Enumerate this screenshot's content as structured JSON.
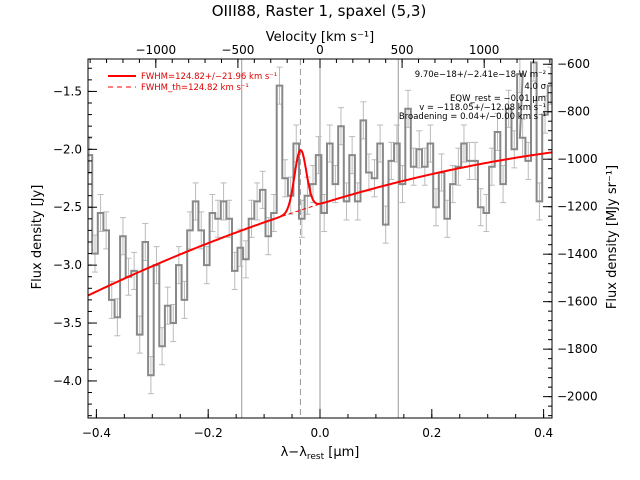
{
  "chart_data": {
    "type": "line",
    "title": "OIII88, Raster 1, spaxel (5,3)",
    "xlabel": "λ−λ_rest [μm]",
    "xlabel_main": "λ−λ",
    "xlabel_sub": "rest",
    "xlabel_unit": " [μm]",
    "ylabel": "Flux density [Jy]",
    "ylabel_right": "Flux density [MJy sr⁻¹]",
    "xlabel_top": "Velocity [km s⁻¹]",
    "xlim": [
      -0.415,
      0.415
    ],
    "ylim": [
      -4.32,
      -1.22
    ],
    "xticks": [
      -0.4,
      -0.2,
      0.0,
      0.2,
      0.4
    ],
    "xtick_labels": [
      "−0.4",
      "−0.2",
      "0.0",
      "0.2",
      "0.4"
    ],
    "yticks": [
      -4.0,
      -3.5,
      -3.0,
      -2.5,
      -2.0,
      -1.5
    ],
    "ytick_labels": [
      "−4.0",
      "−3.5",
      "−3.0",
      "−2.5",
      "−2.0",
      "−1.5"
    ],
    "right_ticks": [
      -2000,
      -1800,
      -1600,
      -1400,
      -1200,
      -1000,
      -800,
      -600
    ],
    "right_tick_labels": [
      "−2000",
      "−1800",
      "−1600",
      "−1400",
      "−1200",
      "−1000",
      "−800",
      "−600"
    ],
    "right_ylim": [
      -2090,
      -578
    ],
    "top_ticks": [
      -1000,
      -500,
      0,
      500,
      1000
    ],
    "top_tick_labels": [
      "−1000",
      "−500",
      "0",
      "500",
      "1000"
    ],
    "top_xlim": [
      -1413,
      1413
    ],
    "vlines_solid": [
      -0.14,
      0.0,
      0.14
    ],
    "vline_dashed": -0.035,
    "grid": false,
    "legend_position": "top-left",
    "legend": [
      {
        "label": "FWHM=124.82+/−21.96 km s⁻¹",
        "style": "solid"
      },
      {
        "label": "FWHM_th=124.82 km s⁻¹",
        "style": "dashed"
      }
    ],
    "annotations": [
      "9.70e−18+/−2.41e−18 W m⁻²",
      "4.0 σ",
      "EQW_rest = −0.01 μm",
      "v = −118.05+/−12.08 km s⁻¹",
      "Broadening = 0.04+/−0.00 km s⁻¹"
    ],
    "series": [
      {
        "name": "data",
        "color": "#888888",
        "x": [
          -0.4125,
          -0.4025,
          -0.3925,
          -0.3825,
          -0.3725,
          -0.3625,
          -0.3525,
          -0.3425,
          -0.3325,
          -0.3225,
          -0.3125,
          -0.3025,
          -0.2925,
          -0.2825,
          -0.2725,
          -0.2625,
          -0.2525,
          -0.2425,
          -0.2325,
          -0.2225,
          -0.2125,
          -0.2025,
          -0.1925,
          -0.1825,
          -0.1725,
          -0.1625,
          -0.1525,
          -0.1425,
          -0.1325,
          -0.1225,
          -0.1125,
          -0.1025,
          -0.0925,
          -0.0825,
          -0.0725,
          -0.0625,
          -0.0525,
          -0.0425,
          -0.0325,
          -0.0225,
          -0.0125,
          -0.0025,
          0.0075,
          0.0175,
          0.0275,
          0.0375,
          0.0475,
          0.0575,
          0.0675,
          0.0775,
          0.0875,
          0.0975,
          0.1075,
          0.1175,
          0.1275,
          0.1375,
          0.1475,
          0.1575,
          0.1675,
          0.1775,
          0.1875,
          0.1975,
          0.2075,
          0.2175,
          0.2275,
          0.2375,
          0.2475,
          0.2575,
          0.2675,
          0.2775,
          0.2875,
          0.2975,
          0.3075,
          0.3175,
          0.3275,
          0.3375,
          0.3475,
          0.3575,
          0.3625,
          0.3725,
          0.3825,
          0.3925,
          0.4025,
          0.4125
        ],
        "y": [
          -2.05,
          -2.9,
          -2.55,
          -2.7,
          -3.3,
          -3.45,
          -2.75,
          -3.1,
          -3.05,
          -3.6,
          -2.8,
          -3.95,
          -3.0,
          -3.7,
          -3.35,
          -3.5,
          -3.0,
          -3.3,
          -2.7,
          -2.45,
          -2.7,
          -3.0,
          -2.55,
          -2.6,
          -2.45,
          -2.6,
          -3.05,
          -2.85,
          -2.95,
          -2.6,
          -2.45,
          -2.35,
          -2.75,
          -2.55,
          -1.45,
          -2.25,
          -2.4,
          -1.95,
          -2.6,
          -2.4,
          -2.3,
          -2.05,
          -2.55,
          -1.95,
          -2.3,
          -1.8,
          -2.45,
          -2.05,
          -2.45,
          -1.75,
          -2.2,
          -2.25,
          -1.95,
          -2.65,
          -2.1,
          -1.95,
          -2.3,
          -1.65,
          -2.15,
          -2.0,
          -2.15,
          -1.95,
          -2.5,
          -2.2,
          -2.6,
          -2.3,
          -2.15,
          -1.95,
          -2.1,
          -2.1,
          -2.5,
          -2.55,
          -2.15,
          -1.85,
          -2.3,
          -1.65,
          -2.0,
          -1.35,
          -1.9,
          -2.1,
          -1.25,
          -2.45,
          -1.7,
          -1.45
        ],
        "err": 0.16
      },
      {
        "name": "FWHM=124.82+/−21.96 km s⁻¹",
        "color": "#ff0000",
        "continuum": {
          "type": "quadratic",
          "a": -2.472,
          "b": 1.49,
          "c": -1.0
        },
        "gaussian": {
          "center": -0.035,
          "amplitude": 0.52,
          "sigma": 0.0106
        }
      }
    ]
  }
}
